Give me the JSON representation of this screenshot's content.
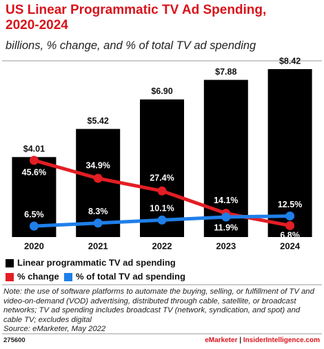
{
  "chart_data": {
    "type": "bar",
    "title": "US Linear Programmatic TV Ad Spending, 2020-2024",
    "subtitle": "billions, % change, and % of total TV ad spending",
    "categories": [
      "2020",
      "2021",
      "2022",
      "2023",
      "2024"
    ],
    "series": [
      {
        "name": "Linear programmatic TV ad spending",
        "type": "bar",
        "color": "#000000",
        "values": [
          4.01,
          5.42,
          6.9,
          7.88,
          8.42
        ],
        "value_labels": [
          "$4.01",
          "$5.42",
          "$6.90",
          "$7.88",
          "$8.42"
        ]
      },
      {
        "name": "% change",
        "type": "line",
        "color": "#e31e24",
        "values": [
          45.6,
          34.9,
          27.4,
          14.1,
          6.8
        ],
        "value_labels": [
          "45.6%",
          "34.9%",
          "27.4%",
          "14.1%",
          "6.8%"
        ]
      },
      {
        "name": "% of total TV ad spending",
        "type": "line",
        "color": "#1f7fe8",
        "values": [
          6.5,
          8.3,
          10.1,
          11.9,
          12.5
        ],
        "value_labels": [
          "6.5%",
          "8.3%",
          "10.1%",
          "11.9%",
          "12.5%"
        ]
      }
    ],
    "note": "Note: the use of software platforms to automate the buying, selling, or fulfillment of TV and video-on-demand (VOD) advertising, distributed through cable, satellite, or broadcast networks; TV ad spending includes broadcast TV (network, syndication, and spot) and cable TV; excludes digital",
    "source": "Source: eMarketer, May 2022",
    "footer": {
      "id": "275600",
      "brand": "eMarketer",
      "site": "InsiderIntelligence.com"
    }
  }
}
